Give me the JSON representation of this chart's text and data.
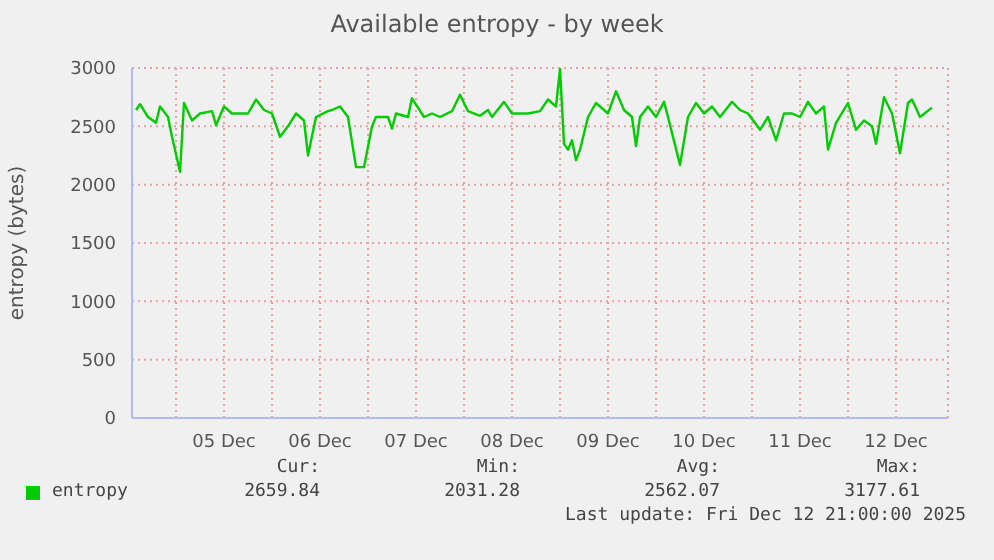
{
  "chart_data": {
    "type": "line",
    "title": "Available entropy - by week",
    "ylabel": "entropy (bytes)",
    "x": [
      "2025-12-04T14:00",
      "2025-12-04T15:00",
      "2025-12-04T17:00",
      "2025-12-04T19:00",
      "2025-12-04T20:00",
      "2025-12-04T22:00",
      "2025-12-04T23:00",
      "2025-12-05T01:00",
      "2025-12-05T02:00",
      "2025-12-05T04:00",
      "2025-12-05T06:00",
      "2025-12-05T09:00",
      "2025-12-05T10:00",
      "2025-12-05T12:00",
      "2025-12-05T14:00",
      "2025-12-05T18:00",
      "2025-12-05T20:00",
      "2025-12-05T22:00",
      "2025-12-06T00:00",
      "2025-12-06T02:00",
      "2025-12-06T04:00",
      "2025-12-06T06:00",
      "2025-12-06T08:00",
      "2025-12-06T09:00",
      "2025-12-06T11:00",
      "2025-12-06T14:00",
      "2025-12-06T15:00",
      "2025-12-06T17:00",
      "2025-12-06T19:00",
      "2025-12-06T21:00",
      "2025-12-06T23:00",
      "2025-12-07T01:00",
      "2025-12-07T02:00",
      "2025-12-07T05:00",
      "2025-12-07T06:00",
      "2025-12-07T07:00",
      "2025-12-07T10:00",
      "2025-12-07T11:00",
      "2025-12-07T14:00",
      "2025-12-07T16:00",
      "2025-12-07T18:00",
      "2025-12-07T21:00",
      "2025-12-07T23:00",
      "2025-12-08T01:00",
      "2025-12-08T04:00",
      "2025-12-08T06:00",
      "2025-12-08T07:00",
      "2025-12-08T10:00",
      "2025-12-08T12:00",
      "2025-12-08T16:00",
      "2025-12-08T19:00",
      "2025-12-08T21:00",
      "2025-12-08T23:00",
      "2025-12-09T00:00",
      "2025-12-09T01:00",
      "2025-12-09T02:00",
      "2025-12-09T03:00",
      "2025-12-09T04:00",
      "2025-12-09T05:00",
      "2025-12-09T07:00",
      "2025-12-09T09:00",
      "2025-12-09T11:00",
      "2025-12-09T12:00",
      "2025-12-09T14:00",
      "2025-12-09T16:00",
      "2025-12-09T18:00",
      "2025-12-09T19:00",
      "2025-12-09T20:00",
      "2025-12-09T22:00",
      "2025-12-10T00:00",
      "2025-12-10T02:00",
      "2025-12-10T03:00",
      "2025-12-10T06:00",
      "2025-12-10T08:00",
      "2025-12-10T10:00",
      "2025-12-10T12:00",
      "2025-12-10T14:00",
      "2025-12-10T16:00",
      "2025-12-10T19:00",
      "2025-12-10T21:00",
      "2025-12-10T23:00",
      "2025-12-11T02:00",
      "2025-12-11T04:00",
      "2025-12-11T06:00",
      "2025-12-11T08:00",
      "2025-12-11T10:00",
      "2025-12-11T12:00",
      "2025-12-11T14:00",
      "2025-12-11T16:00",
      "2025-12-11T18:00",
      "2025-12-11T19:00",
      "2025-12-11T21:00",
      "2025-12-12T00:00",
      "2025-12-12T02:00",
      "2025-12-12T04:00",
      "2025-12-12T06:00",
      "2025-12-12T07:00",
      "2025-12-12T09:00",
      "2025-12-12T11:00",
      "2025-12-12T13:00",
      "2025-12-12T15:00",
      "2025-12-12T16:00",
      "2025-12-12T18:00",
      "2025-12-12T21:00"
    ],
    "series": [
      {
        "name": "entropy",
        "color": "#00cc00",
        "values": [
          2640,
          2690,
          2580,
          2530,
          2670,
          2580,
          2410,
          2110,
          2700,
          2550,
          2610,
          2630,
          2510,
          2670,
          2610,
          2610,
          2730,
          2640,
          2610,
          2410,
          2500,
          2610,
          2550,
          2250,
          2580,
          2630,
          2640,
          2670,
          2580,
          2150,
          2150,
          2500,
          2580,
          2580,
          2480,
          2610,
          2580,
          2740,
          2580,
          2610,
          2580,
          2630,
          2770,
          2630,
          2590,
          2640,
          2580,
          2710,
          2610,
          2610,
          2630,
          2730,
          2670,
          2990,
          2350,
          2300,
          2380,
          2210,
          2300,
          2580,
          2700,
          2640,
          2610,
          2800,
          2640,
          2580,
          2330,
          2580,
          2670,
          2580,
          2710,
          2580,
          2170,
          2580,
          2700,
          2610,
          2670,
          2580,
          2710,
          2640,
          2610,
          2470,
          2580,
          2380,
          2610,
          2610,
          2580,
          2710,
          2610,
          2670,
          2300,
          2530,
          2700,
          2470,
          2550,
          2500,
          2350,
          2750,
          2610,
          2270,
          2700,
          2730,
          2580,
          2660
        ]
      }
    ],
    "xlim": [
      "2025-12-04T13:00",
      "2025-12-13T01:00"
    ],
    "xticks": [
      {
        "value": "2025-12-05T00:00",
        "label": null
      },
      {
        "value": "2025-12-05T12:00",
        "label": "05 Dec"
      },
      {
        "value": "2025-12-06T00:00",
        "label": null
      },
      {
        "value": "2025-12-06T12:00",
        "label": "06 Dec"
      },
      {
        "value": "2025-12-07T00:00",
        "label": null
      },
      {
        "value": "2025-12-07T12:00",
        "label": "07 Dec"
      },
      {
        "value": "2025-12-08T00:00",
        "label": null
      },
      {
        "value": "2025-12-08T12:00",
        "label": "08 Dec"
      },
      {
        "value": "2025-12-09T00:00",
        "label": null
      },
      {
        "value": "2025-12-09T12:00",
        "label": "09 Dec"
      },
      {
        "value": "2025-12-10T00:00",
        "label": null
      },
      {
        "value": "2025-12-10T12:00",
        "label": "10 Dec"
      },
      {
        "value": "2025-12-11T00:00",
        "label": null
      },
      {
        "value": "2025-12-11T12:00",
        "label": "11 Dec"
      },
      {
        "value": "2025-12-12T00:00",
        "label": null
      },
      {
        "value": "2025-12-12T12:00",
        "label": "12 Dec"
      }
    ],
    "ylim": [
      0,
      3000
    ],
    "yticks": [
      0,
      500,
      1000,
      1500,
      2000,
      2500,
      3000
    ],
    "grid": true,
    "legend": "bottom left",
    "marker": "none",
    "line_style": "solid",
    "annotations": [
      "Cur:",
      "Min:",
      "Avg:",
      "Max:",
      "2659.84",
      "2031.28",
      "2562.07",
      "3177.61",
      "Last update: Fri Dec 12 21:00:00 2025"
    ]
  }
}
